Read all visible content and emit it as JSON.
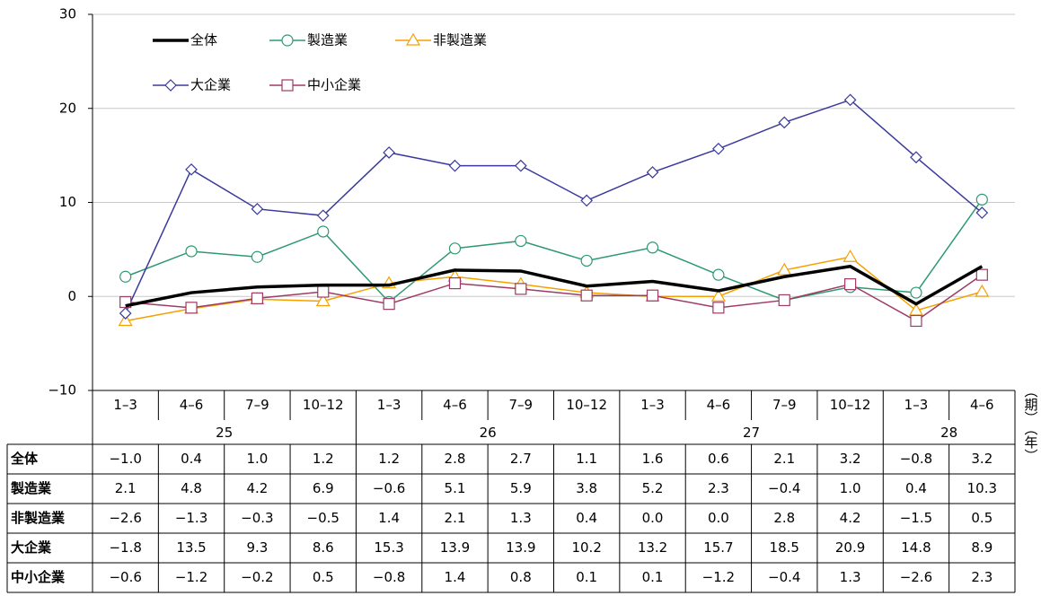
{
  "chart_data": {
    "type": "line",
    "categories": [
      "1–3",
      "4–6",
      "7–9",
      "10–12",
      "1–3",
      "4–6",
      "7–9",
      "10–12",
      "1–3",
      "4–6",
      "7–9",
      "10–12",
      "1–3",
      "4–6"
    ],
    "x_groups": [
      "25",
      null,
      null,
      null,
      "26",
      null,
      null,
      null,
      "27",
      null,
      null,
      null,
      "28",
      null
    ],
    "x_unit_label": "（期）",
    "x_group_unit_label": "（年）",
    "ylim": [
      -10,
      30
    ],
    "yticks": [
      {
        "value": -10,
        "label": "−10"
      },
      0,
      10,
      20,
      30
    ],
    "grid": true,
    "series": [
      {
        "name": "全体",
        "color": "#000000",
        "marker": "none",
        "values": [
          -1.0,
          0.4,
          1.0,
          1.2,
          1.2,
          2.8,
          2.7,
          1.1,
          1.6,
          0.6,
          2.1,
          3.2,
          -0.8,
          3.2
        ],
        "value_labels": [
          "−1.0",
          "0.4",
          "1.0",
          "1.2",
          "1.2",
          "2.8",
          "2.7",
          "1.1",
          "1.6",
          "0.6",
          "2.1",
          "3.2",
          "−0.8",
          "3.2"
        ]
      },
      {
        "name": "製造業",
        "color": "#2e9970",
        "marker": "circle",
        "values": [
          2.1,
          4.8,
          4.2,
          6.9,
          -0.6,
          5.1,
          5.9,
          3.8,
          5.2,
          2.3,
          -0.4,
          1.0,
          0.4,
          10.3
        ],
        "value_labels": [
          "2.1",
          "4.8",
          "4.2",
          "6.9",
          "−0.6",
          "5.1",
          "5.9",
          "3.8",
          "5.2",
          "2.3",
          "−0.4",
          "1.0",
          "0.4",
          "10.3"
        ]
      },
      {
        "name": "非製造業",
        "color": "#f5a000",
        "marker": "triangle",
        "values": [
          -2.6,
          -1.3,
          -0.3,
          -0.5,
          1.4,
          2.1,
          1.3,
          0.4,
          0.0,
          0.0,
          2.8,
          4.2,
          -1.5,
          0.5
        ],
        "value_labels": [
          "−2.6",
          "−1.3",
          "−0.3",
          "−0.5",
          "1.4",
          "2.1",
          "1.3",
          "0.4",
          "0.0",
          "0.0",
          "2.8",
          "4.2",
          "−1.5",
          "0.5"
        ]
      },
      {
        "name": "大企業",
        "color": "#3a3a9e",
        "marker": "diamond",
        "values": [
          -1.8,
          13.5,
          9.3,
          8.6,
          15.3,
          13.9,
          13.9,
          10.2,
          13.2,
          15.7,
          18.5,
          20.9,
          14.8,
          8.9
        ],
        "value_labels": [
          "−1.8",
          "13.5",
          "9.3",
          "8.6",
          "15.3",
          "13.9",
          "13.9",
          "10.2",
          "13.2",
          "15.7",
          "18.5",
          "20.9",
          "14.8",
          "8.9"
        ]
      },
      {
        "name": "中小企業",
        "color": "#9e3a66",
        "marker": "square",
        "values": [
          -0.6,
          -1.2,
          -0.2,
          0.5,
          -0.8,
          1.4,
          0.8,
          0.1,
          0.1,
          -1.2,
          -0.4,
          1.3,
          -2.6,
          2.3
        ],
        "value_labels": [
          "−0.6",
          "−1.2",
          "−0.2",
          "0.5",
          "−0.8",
          "1.4",
          "0.8",
          "0.1",
          "0.1",
          "−1.2",
          "−0.4",
          "1.3",
          "−2.6",
          "2.3"
        ]
      }
    ]
  }
}
